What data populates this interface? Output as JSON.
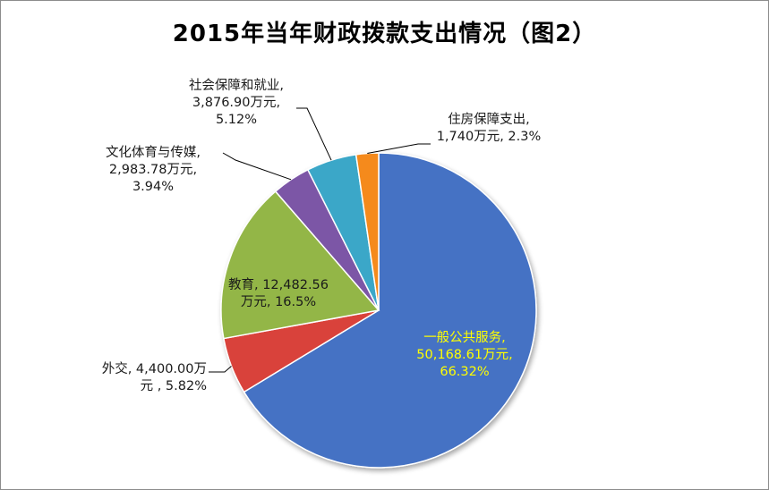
{
  "chart_data": {
    "type": "pie",
    "title": "2015年当年财政拨款支出情况（图2）",
    "colors": {
      "一般公共服务": "#4472c4",
      "外交": "#d9423b",
      "教育": "#93b646",
      "文化体育与传媒": "#7b56a6",
      "社会保障和就业": "#3aa7c8",
      "住房保障支出": "#f58a1f"
    },
    "slices": [
      {
        "name": "一般公共服务",
        "value": 50168.61,
        "percent": 66.32,
        "label_lines": [
          "一般公共服务,",
          "50,168.61万元,",
          "66.32%"
        ],
        "label_color": "#ffff00"
      },
      {
        "name": "外交",
        "value": 4400.0,
        "percent": 5.82,
        "label_lines": [
          "外交, 4,400.00万",
          "元 , 5.82%"
        ],
        "label_color": "#1a1a1a"
      },
      {
        "name": "教育",
        "value": 12482.56,
        "percent": 16.5,
        "label_lines": [
          "教育, 12,482.56",
          "万元, 16.5%"
        ],
        "label_color": "#1a1a1a"
      },
      {
        "name": "文化体育与传媒",
        "value": 2983.78,
        "percent": 3.94,
        "label_lines": [
          "文化体育与传媒,",
          "2,983.78万元,",
          "3.94%"
        ],
        "label_color": "#1a1a1a"
      },
      {
        "name": "社会保障和就业",
        "value": 3876.9,
        "percent": 5.12,
        "label_lines": [
          "社会保障和就业,",
          "3,876.90万元,",
          "5.12%"
        ],
        "label_color": "#1a1a1a"
      },
      {
        "name": "住房保障支出",
        "value": 1740,
        "percent": 2.3,
        "label_lines": [
          "住房保障支出,",
          "1,740万元, 2.3%"
        ],
        "label_color": "#1a1a1a"
      }
    ]
  }
}
